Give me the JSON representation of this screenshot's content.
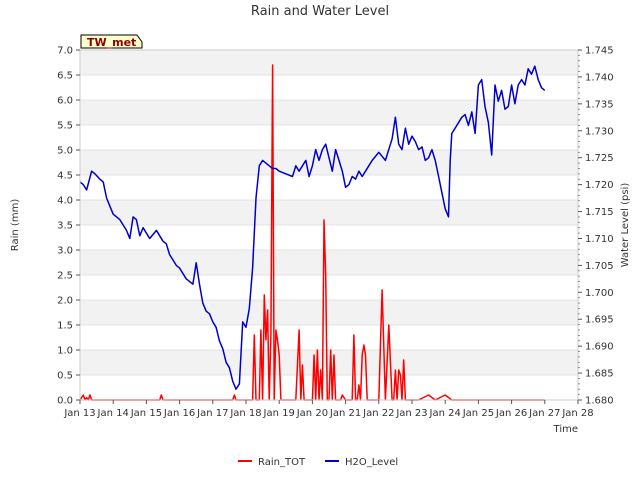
{
  "chart_data": {
    "type": "line",
    "title": "Rain and Water Level",
    "xlabel": "Time",
    "ylabel_left": "Rain (mm)",
    "ylabel_right": "Water Level (psi)",
    "station_label": "TW_met",
    "x_ticks": [
      "Jan 13",
      "Jan 14",
      "Jan 15",
      "Jan 16",
      "Jan 17",
      "Jan 18",
      "Jan 19",
      "Jan 20",
      "Jan 21",
      "Jan 22",
      "Jan 23",
      "Jan 24",
      "Jan 25",
      "Jan 26",
      "Jan 27",
      "Jan 28"
    ],
    "xlim": [
      13,
      28
    ],
    "ylim_left": [
      0,
      7
    ],
    "ylim_right": [
      1.68,
      1.745
    ],
    "left_ticks": [
      "0.0",
      "0.5",
      "1.0",
      "1.5",
      "2.0",
      "2.5",
      "3.0",
      "3.5",
      "4.0",
      "4.5",
      "5.0",
      "5.5",
      "6.0",
      "6.5",
      "7.0"
    ],
    "right_ticks": [
      "1.680",
      "1.685",
      "1.690",
      "1.695",
      "1.700",
      "1.705",
      "1.710",
      "1.715",
      "1.720",
      "1.725",
      "1.730",
      "1.735",
      "1.740",
      "1.745"
    ],
    "colors": {
      "rain": "#ff0000",
      "water": "#0000cc"
    },
    "legend": {
      "placement": "bottom-center",
      "entries": [
        "Rain_TOT",
        "H2O_Level"
      ]
    },
    "grid": "horizontal bands",
    "series": [
      {
        "name": "Rain_TOT",
        "axis": "left",
        "x": [
          13.0,
          13.1,
          13.15,
          13.2,
          13.25,
          13.3,
          13.35,
          15.4,
          15.45,
          15.5,
          17.6,
          17.65,
          17.7,
          18.2,
          18.25,
          18.3,
          18.35,
          18.4,
          18.45,
          18.5,
          18.55,
          18.6,
          18.65,
          18.7,
          18.75,
          18.8,
          18.85,
          18.9,
          18.95,
          19.0,
          19.05,
          19.1,
          19.2,
          19.3,
          19.4,
          19.5,
          19.6,
          19.65,
          19.7,
          19.75,
          19.8,
          19.85,
          19.9,
          20.0,
          20.05,
          20.1,
          20.15,
          20.2,
          20.25,
          20.3,
          20.35,
          20.4,
          20.45,
          20.5,
          20.55,
          20.6,
          20.65,
          20.7,
          20.75,
          20.8,
          20.85,
          20.9,
          21.0,
          21.1,
          21.2,
          21.25,
          21.3,
          21.35,
          21.4,
          21.45,
          21.5,
          21.55,
          21.6,
          21.65,
          21.7,
          21.75,
          21.8,
          21.85,
          21.9,
          22.0,
          22.1,
          22.2,
          22.3,
          22.4,
          22.45,
          22.5,
          22.55,
          22.6,
          22.65,
          22.7,
          22.75,
          22.8,
          22.85,
          22.9,
          22.95,
          23.0,
          23.2,
          23.5,
          23.7,
          24.0,
          24.2,
          26.8,
          27.0
        ],
        "values": [
          0.0,
          0.1,
          0.0,
          0.05,
          0.0,
          0.1,
          0.0,
          0.0,
          0.1,
          0.0,
          0.0,
          0.1,
          0.0,
          0.0,
          1.3,
          0.0,
          0.0,
          0.0,
          1.4,
          0.0,
          2.1,
          1.2,
          1.8,
          0.0,
          1.3,
          6.7,
          0.0,
          1.4,
          1.2,
          0.9,
          0.0,
          0.0,
          0.0,
          0.0,
          0.0,
          0.0,
          1.4,
          0.0,
          0.7,
          0.0,
          0.0,
          0.0,
          0.0,
          0.0,
          0.9,
          0.0,
          1.0,
          0.0,
          0.6,
          0.0,
          3.6,
          2.5,
          0.0,
          0.0,
          1.0,
          0.0,
          0.9,
          0.0,
          0.0,
          0.0,
          0.0,
          0.1,
          0.0,
          0.0,
          0.0,
          1.3,
          0.0,
          0.0,
          0.3,
          0.0,
          0.9,
          1.1,
          0.9,
          0.0,
          0.0,
          0.0,
          0.0,
          0.0,
          0.0,
          0.0,
          2.2,
          0.0,
          1.5,
          0.0,
          0.0,
          0.6,
          0.0,
          0.6,
          0.5,
          0.0,
          0.8,
          0.0,
          0.0,
          0.0,
          0.0,
          0.0,
          0.0,
          0.1,
          0.0,
          0.1,
          0.0,
          0.0,
          0.0
        ]
      },
      {
        "name": "H2O_Level",
        "axis": "right",
        "x": [
          13.0,
          13.1,
          13.2,
          13.35,
          13.45,
          13.6,
          13.7,
          13.8,
          13.9,
          14.0,
          14.2,
          14.4,
          14.5,
          14.6,
          14.7,
          14.8,
          14.9,
          15.1,
          15.3,
          15.4,
          15.5,
          15.6,
          15.7,
          15.8,
          15.9,
          16.0,
          16.2,
          16.4,
          16.5,
          16.6,
          16.7,
          16.8,
          16.9,
          17.0,
          17.1,
          17.2,
          17.3,
          17.4,
          17.5,
          17.6,
          17.7,
          17.8,
          17.9,
          18.0,
          18.1,
          18.2,
          18.3,
          18.4,
          18.5,
          18.6,
          18.7,
          18.8,
          18.9,
          19.0,
          19.2,
          19.4,
          19.5,
          19.6,
          19.8,
          19.9,
          20.0,
          20.1,
          20.2,
          20.3,
          20.4,
          20.5,
          20.6,
          20.7,
          20.8,
          20.9,
          21.0,
          21.1,
          21.2,
          21.3,
          21.4,
          21.5,
          21.6,
          21.7,
          21.8,
          22.0,
          22.2,
          22.4,
          22.5,
          22.6,
          22.7,
          22.8,
          22.9,
          23.0,
          23.1,
          23.2,
          23.3,
          23.4,
          23.5,
          23.6,
          23.7,
          23.8,
          23.9,
          24.0,
          24.1,
          24.15,
          24.2,
          24.4,
          24.5,
          24.6,
          24.7,
          24.8,
          24.9,
          25.0,
          25.1,
          25.2,
          25.3,
          25.4,
          25.5,
          25.6,
          25.7,
          25.8,
          25.9,
          26.0,
          26.1,
          26.2,
          26.3,
          26.4,
          26.5,
          26.6,
          26.7,
          26.8,
          26.9,
          27.0
        ],
        "values": [
          1.7205,
          1.72,
          1.719,
          1.7225,
          1.722,
          1.721,
          1.7205,
          1.7175,
          1.716,
          1.7145,
          1.7135,
          1.7115,
          1.71,
          1.714,
          1.7135,
          1.7105,
          1.712,
          1.71,
          1.7115,
          1.7105,
          1.7095,
          1.709,
          1.707,
          1.706,
          1.705,
          1.7045,
          1.7025,
          1.7015,
          1.7055,
          1.7015,
          1.698,
          1.6965,
          1.696,
          1.6945,
          1.6935,
          1.691,
          1.6895,
          1.687,
          1.686,
          1.6835,
          1.682,
          1.683,
          1.6945,
          1.6935,
          1.697,
          1.7045,
          1.7175,
          1.7235,
          1.7245,
          1.724,
          1.7235,
          1.723,
          1.723,
          1.7225,
          1.722,
          1.7215,
          1.7235,
          1.7225,
          1.7245,
          1.7215,
          1.7235,
          1.7265,
          1.7245,
          1.7265,
          1.7275,
          1.725,
          1.7225,
          1.7265,
          1.7245,
          1.7225,
          1.7195,
          1.72,
          1.7215,
          1.721,
          1.7225,
          1.7215,
          1.7225,
          1.7235,
          1.7245,
          1.726,
          1.7245,
          1.7285,
          1.7325,
          1.7275,
          1.7265,
          1.7305,
          1.7275,
          1.729,
          1.728,
          1.7265,
          1.727,
          1.7245,
          1.725,
          1.7265,
          1.7245,
          1.7215,
          1.7185,
          1.7155,
          1.714,
          1.7245,
          1.7295,
          1.7315,
          1.7325,
          1.733,
          1.731,
          1.7335,
          1.7295,
          1.7385,
          1.7395,
          1.7345,
          1.7315,
          1.7255,
          1.7385,
          1.7355,
          1.7375,
          1.734,
          1.7345,
          1.7385,
          1.735,
          1.7385,
          1.7395,
          1.7385,
          1.7415,
          1.7405,
          1.742,
          1.7395,
          1.738,
          1.7375
        ]
      }
    ]
  }
}
